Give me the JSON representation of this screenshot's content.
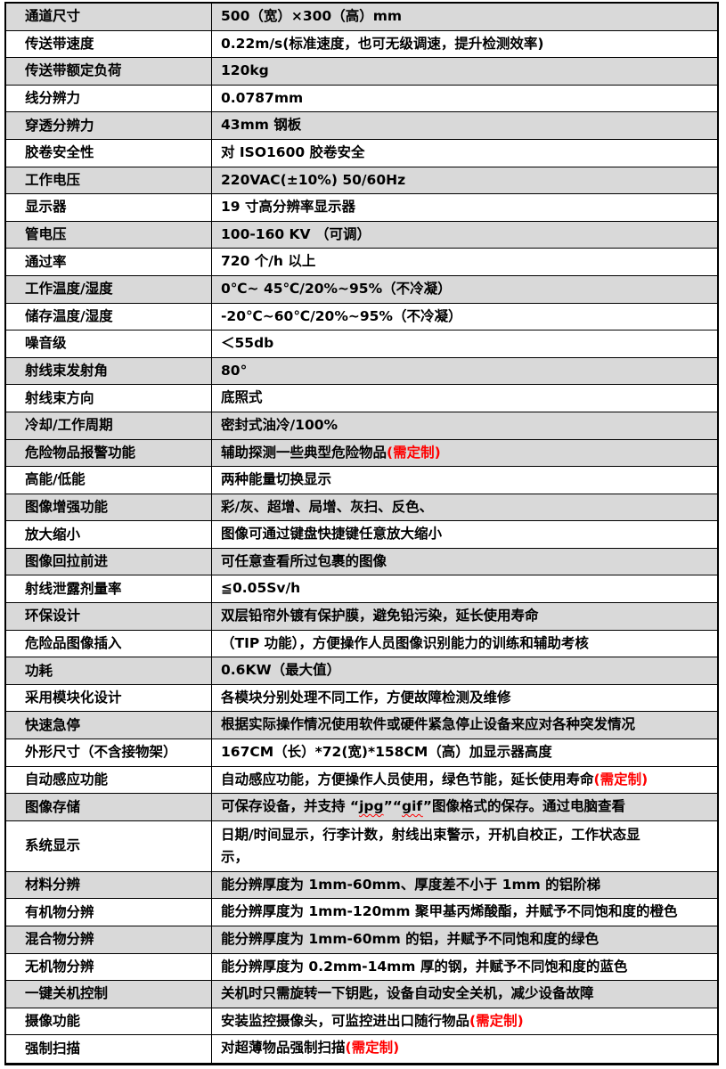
{
  "colors": {
    "row_shading": "#d9d9d9",
    "accent_red": "#ff0000",
    "border": "#000000",
    "background": "#ffffff"
  },
  "table": {
    "rows": [
      {
        "label": "通道尺寸",
        "shaded": true,
        "parts": [
          {
            "text": "500（宽）×300（高）mm"
          }
        ]
      },
      {
        "label": "传送带速度",
        "shaded": false,
        "parts": [
          {
            "text": "0.22m/s(标准速度，也可无级调速，提升检测效率)"
          }
        ]
      },
      {
        "label": "传送带额定负荷",
        "shaded": true,
        "parts": [
          {
            "text": "120kg"
          }
        ]
      },
      {
        "label": "线分辨力",
        "shaded": false,
        "parts": [
          {
            "text": "0.0787mm"
          }
        ]
      },
      {
        "label": "穿透分辨力",
        "shaded": true,
        "parts": [
          {
            "text": "43mm 钢板"
          }
        ]
      },
      {
        "label": "胶卷安全性",
        "shaded": false,
        "parts": [
          {
            "text": "对 ISO1600 胶卷安全"
          }
        ]
      },
      {
        "label": "工作电压",
        "shaded": true,
        "parts": [
          {
            "text": "220VAC(±10%)  50/60Hz"
          }
        ]
      },
      {
        "label": "显示器",
        "shaded": false,
        "parts": [
          {
            "text": "19 寸高分辨率显示器"
          }
        ]
      },
      {
        "label": "管电压",
        "shaded": true,
        "parts": [
          {
            "text": "100-160 KV （可调）"
          }
        ]
      },
      {
        "label": "通过率",
        "shaded": false,
        "parts": [
          {
            "text": "720 个/h 以上"
          }
        ]
      },
      {
        "label": "工作温度/湿度",
        "shaded": true,
        "parts": [
          {
            "text": "0℃~ 45℃/20%~95%（不冷凝）"
          }
        ]
      },
      {
        "label": "储存温度/湿度",
        "shaded": false,
        "parts": [
          {
            "text": "-20℃~60℃/20%~95%（不冷凝）"
          }
        ]
      },
      {
        "label": "噪音级",
        "shaded": false,
        "parts": [
          {
            "text": "＜55db"
          }
        ]
      },
      {
        "label": "射线束发射角",
        "shaded": true,
        "parts": [
          {
            "text": "80°"
          }
        ]
      },
      {
        "label": "射线束方向",
        "shaded": false,
        "parts": [
          {
            "text": "底照式"
          }
        ]
      },
      {
        "label": "冷却/工作周期",
        "shaded": true,
        "parts": [
          {
            "text": "密封式油冷/100%"
          }
        ]
      },
      {
        "label": "危险物品报警功能",
        "shaded": true,
        "parts": [
          {
            "text": "辅助探测一些典型危险物品"
          },
          {
            "text": "(需定制)",
            "style": "red"
          }
        ]
      },
      {
        "label": "高能/低能",
        "shaded": false,
        "parts": [
          {
            "text": "两种能量切换显示"
          }
        ]
      },
      {
        "label": "图像增强功能",
        "shaded": true,
        "parts": [
          {
            "text": "彩/灰、超增、局增、灰扫、反色、"
          }
        ]
      },
      {
        "label": "放大缩小",
        "shaded": false,
        "parts": [
          {
            "text": "图像可通过键盘快捷键任意放大缩小"
          }
        ]
      },
      {
        "label": "图像回拉前进",
        "shaded": true,
        "parts": [
          {
            "text": "可任意查看所过包裹的图像"
          }
        ]
      },
      {
        "label": "射线泄露剂量率",
        "shaded": false,
        "parts": [
          {
            "text": "≦0.05Sv/h"
          }
        ]
      },
      {
        "label": "环保设计",
        "shaded": true,
        "parts": [
          {
            "text": "双层铅帘外镀有保护膜，避免铅污染，延长使用寿命"
          }
        ]
      },
      {
        "label": "危险品图像插入",
        "shaded": false,
        "parts": [
          {
            "text": "（TIP 功能），方便操作人员图像识别能力的训练和辅助考核"
          }
        ]
      },
      {
        "label": "功耗",
        "shaded": true,
        "parts": [
          {
            "text": "0.6KW（最大值）"
          }
        ]
      },
      {
        "label": "采用模块化设计",
        "shaded": false,
        "parts": [
          {
            "text": "各模块分别处理不同工作，方便故障检测及维修"
          }
        ]
      },
      {
        "label": "快速急停",
        "shaded": true,
        "parts": [
          {
            "text": "根据实际操作情况使用软件或硬件紧急停止设备来应对各种突发情况"
          }
        ]
      },
      {
        "label": "外形尺寸（不含接物架）",
        "shaded": false,
        "parts": [
          {
            "text": "167CM（长）*72(宽)*158CM（高）加显示器高度"
          }
        ]
      },
      {
        "label": "自动感应功能",
        "shaded": false,
        "parts": [
          {
            "text": "自动感应功能，方便操作人员使用，绿色节能，延长使用寿命"
          },
          {
            "text": "(需定制)",
            "style": "red"
          }
        ]
      },
      {
        "label": "图像存储",
        "shaded": true,
        "parts": [
          {
            "text": "可保存设备，并支持 “"
          },
          {
            "text": "jpg",
            "style": "misspell"
          },
          {
            "text": "”“"
          },
          {
            "text": "gif",
            "style": "misspell"
          },
          {
            "text": "”图像格式的保存。通过电脑查看"
          }
        ]
      },
      {
        "label": "系统显示",
        "shaded": false,
        "tall": true,
        "parts": [
          {
            "text": "日期/时间显示，行李计数，射线出束警示，开机自校正，工作状态显"
          },
          {
            "style": "br"
          },
          {
            "text": "示，"
          }
        ]
      },
      {
        "label": "材料分辨",
        "shaded": true,
        "parts": [
          {
            "text": "能分辨厚度为 1mm-60mm、厚度差不小于 1mm 的铝阶梯"
          }
        ]
      },
      {
        "label": "有机物分辨",
        "shaded": false,
        "parts": [
          {
            "text": "能分辨厚度为 1mm-120mm 聚甲基丙烯酸酯，并赋予不同饱和度的橙色"
          }
        ]
      },
      {
        "label": "混合物分辨",
        "shaded": true,
        "parts": [
          {
            "text": "能分辨厚度为 1mm-60mm 的铝，并赋予不同饱和度的绿色"
          }
        ]
      },
      {
        "label": "无机物分辨",
        "shaded": false,
        "parts": [
          {
            "text": "能分辨厚度为 0.2mm-14mm 厚的钢，并赋予不同饱和度的蓝色"
          }
        ]
      },
      {
        "label": "一键关机控制",
        "shaded": true,
        "parts": [
          {
            "text": "关机时只需旋转一下钥匙，设备自动安全关机，减少设备故障"
          }
        ]
      },
      {
        "label": "摄像功能",
        "shaded": false,
        "parts": [
          {
            "text": "安装监控摄像头，可监控进出口随行物品"
          },
          {
            "text": "(需定制)",
            "style": "red"
          }
        ]
      },
      {
        "label": "强制扫描",
        "shaded": false,
        "parts": [
          {
            "text": "对超薄物品强制扫描"
          },
          {
            "text": "(需定制)",
            "style": "red"
          }
        ]
      }
    ]
  }
}
